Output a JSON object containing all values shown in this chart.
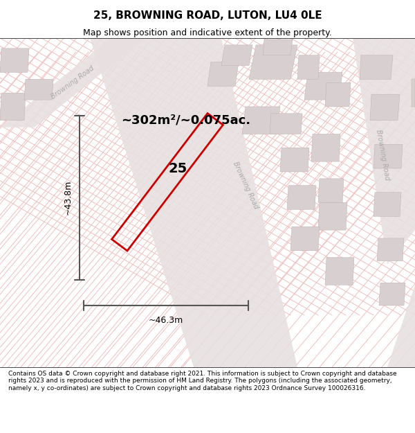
{
  "title": "25, BROWNING ROAD, LUTON, LU4 0LE",
  "subtitle": "Map shows position and indicative extent of the property.",
  "footer": "Contains OS data © Crown copyright and database right 2021. This information is subject to Crown copyright and database rights 2023 and is reproduced with the permission of HM Land Registry. The polygons (including the associated geometry, namely x, y co-ordinates) are subject to Crown copyright and database rights 2023 Ordnance Survey 100026316.",
  "area_label": "~302m²/~0.075ac.",
  "number_label": "25",
  "width_label": "~46.3m",
  "height_label": "~43.8m",
  "map_bg": "#f5f0f0",
  "road_color": "#e8e0e0",
  "building_color": "#d8d0d0",
  "plot_outline_color": "#cc0000",
  "plot_fill_color": "#ffffff",
  "grid_line_color": "#f0c0c0",
  "road_label_color": "#aaaaaa",
  "title_color": "#000000",
  "subtitle_color": "#000000",
  "footer_color": "#000000",
  "dim_line_color": "#555555",
  "figsize": [
    6.0,
    6.25
  ],
  "dpi": 100
}
